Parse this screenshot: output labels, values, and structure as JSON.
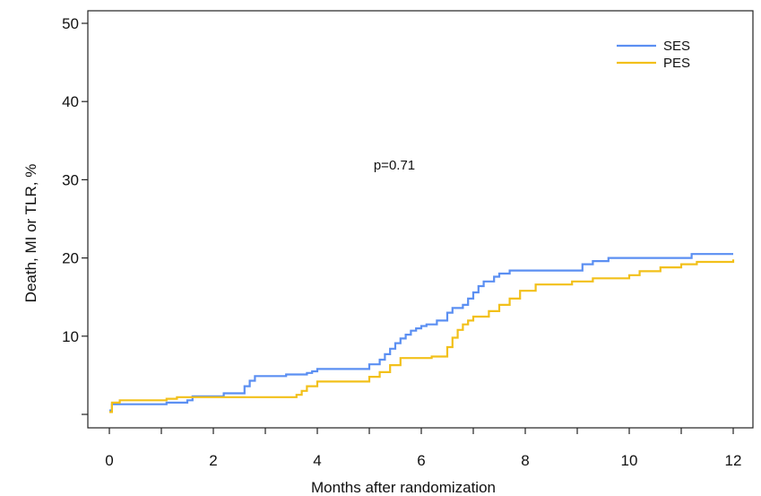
{
  "chart_data": {
    "type": "line",
    "title": "",
    "xlabel": "Months after randomization",
    "ylabel": "Death, MI or TLR, %",
    "xlim": [
      0,
      12
    ],
    "ylim": [
      0,
      50
    ],
    "x_ticks": [
      0,
      2,
      4,
      6,
      8,
      10,
      12
    ],
    "x_tick_labels": [
      "0",
      "2",
      "4",
      "6",
      "8",
      "10",
      "12"
    ],
    "y_ticks": [
      0,
      10,
      20,
      30,
      40,
      50
    ],
    "y_tick_labels": [
      "",
      "10",
      "20",
      "30",
      "40",
      "50"
    ],
    "annotation": "p=0.71",
    "legend_position": "top-right",
    "grid": false,
    "series": [
      {
        "name": "SES",
        "color": "#5b8ff2",
        "x": [
          0,
          0.05,
          1.1,
          1.5,
          1.6,
          2.2,
          2.6,
          2.7,
          2.8,
          3.4,
          3.8,
          3.9,
          4.0,
          5.0,
          5.2,
          5.3,
          5.4,
          5.5,
          5.6,
          5.7,
          5.8,
          5.9,
          6.0,
          6.1,
          6.3,
          6.5,
          6.6,
          6.8,
          6.9,
          7.0,
          7.1,
          7.2,
          7.4,
          7.5,
          7.7,
          9.1,
          9.3,
          9.6,
          11.2,
          12.0
        ],
        "y": [
          0.5,
          1.3,
          1.5,
          1.8,
          2.3,
          2.7,
          3.6,
          4.3,
          4.9,
          5.1,
          5.3,
          5.5,
          5.8,
          6.4,
          7.0,
          7.7,
          8.4,
          9.1,
          9.7,
          10.2,
          10.7,
          11.0,
          11.3,
          11.5,
          12.0,
          13.0,
          13.6,
          14.0,
          14.8,
          15.6,
          16.4,
          17.0,
          17.6,
          18.0,
          18.4,
          19.2,
          19.6,
          20.0,
          20.5,
          20.5
        ]
      },
      {
        "name": "PES",
        "color": "#f2c01a",
        "x": [
          0,
          0.05,
          0.2,
          1.1,
          1.3,
          3.6,
          3.7,
          3.8,
          4.0,
          5.0,
          5.2,
          5.4,
          5.6,
          6.2,
          6.5,
          6.6,
          6.7,
          6.8,
          6.9,
          7.0,
          7.3,
          7.5,
          7.7,
          7.9,
          8.2,
          8.9,
          9.3,
          10.0,
          10.2,
          10.6,
          11.0,
          11.3,
          12.0
        ],
        "y": [
          0.3,
          1.5,
          1.8,
          2.0,
          2.2,
          2.5,
          3.0,
          3.6,
          4.2,
          4.8,
          5.4,
          6.3,
          7.2,
          7.4,
          8.6,
          9.8,
          10.8,
          11.5,
          12.0,
          12.5,
          13.2,
          14.0,
          14.8,
          15.8,
          16.6,
          17.0,
          17.4,
          17.8,
          18.3,
          18.8,
          19.2,
          19.5,
          19.8
        ]
      }
    ]
  }
}
